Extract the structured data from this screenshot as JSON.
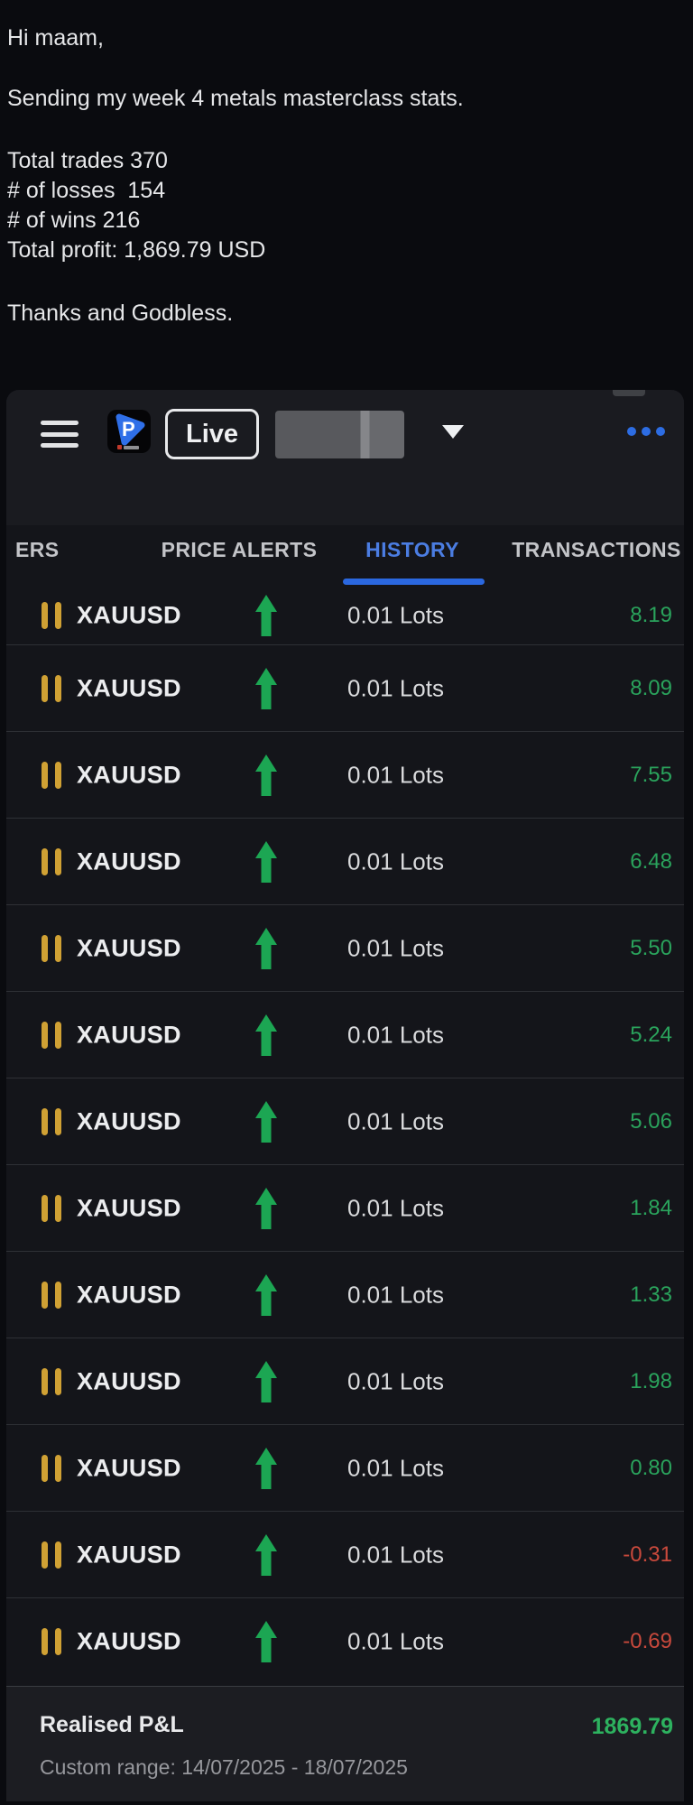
{
  "message": {
    "greeting": "Hi maam,",
    "intro": "Sending my week 4 metals masterclass stats.",
    "stats": [
      "Total trades 370",
      "# of losses  154",
      "# of wins 216",
      "Total profit: 1,869.79 USD"
    ],
    "closing": "Thanks and Godbless."
  },
  "app": {
    "header": {
      "logo_letter": "P",
      "live_label": "Live",
      "account_display": "[redacted]",
      "menu_icon": "hamburger-icon",
      "account_dropdown_icon": "chevron-down-icon",
      "more_icon": "ellipsis-icon"
    },
    "tabs": [
      {
        "label": "ERS",
        "active": false
      },
      {
        "label": "PRICE ALERTS",
        "active": false
      },
      {
        "label": "HISTORY",
        "active": true
      },
      {
        "label": "TRANSACTIONS",
        "active": false
      }
    ],
    "trades": [
      {
        "symbol": "XAUUSD",
        "direction": "up",
        "lots": "0.01 Lots",
        "profit": "8.19"
      },
      {
        "symbol": "XAUUSD",
        "direction": "up",
        "lots": "0.01 Lots",
        "profit": "8.09"
      },
      {
        "symbol": "XAUUSD",
        "direction": "up",
        "lots": "0.01 Lots",
        "profit": "7.55"
      },
      {
        "symbol": "XAUUSD",
        "direction": "up",
        "lots": "0.01 Lots",
        "profit": "6.48"
      },
      {
        "symbol": "XAUUSD",
        "direction": "up",
        "lots": "0.01 Lots",
        "profit": "5.50"
      },
      {
        "symbol": "XAUUSD",
        "direction": "up",
        "lots": "0.01 Lots",
        "profit": "5.24"
      },
      {
        "symbol": "XAUUSD",
        "direction": "up",
        "lots": "0.01 Lots",
        "profit": "5.06"
      },
      {
        "symbol": "XAUUSD",
        "direction": "up",
        "lots": "0.01 Lots",
        "profit": "1.84"
      },
      {
        "symbol": "XAUUSD",
        "direction": "up",
        "lots": "0.01 Lots",
        "profit": "1.33"
      },
      {
        "symbol": "XAUUSD",
        "direction": "up",
        "lots": "0.01 Lots",
        "profit": "1.98"
      },
      {
        "symbol": "XAUUSD",
        "direction": "up",
        "lots": "0.01 Lots",
        "profit": "0.80"
      },
      {
        "symbol": "XAUUSD",
        "direction": "up",
        "lots": "0.01 Lots",
        "profit": "-0.31"
      },
      {
        "symbol": "XAUUSD",
        "direction": "up",
        "lots": "0.01 Lots",
        "profit": "-0.69"
      }
    ],
    "footer": {
      "label": "Realised P&L",
      "value": "1869.79",
      "range": "Custom range: 14/07/2025 - 18/07/2025"
    },
    "colors": {
      "accent_blue": "#2d6de3",
      "tab_active_blue": "#4b7de2",
      "profit_green": "#2aa35c",
      "loss_red": "#c9493c",
      "gold_bars": "#d0a134",
      "footer_green": "#2db25f"
    }
  }
}
